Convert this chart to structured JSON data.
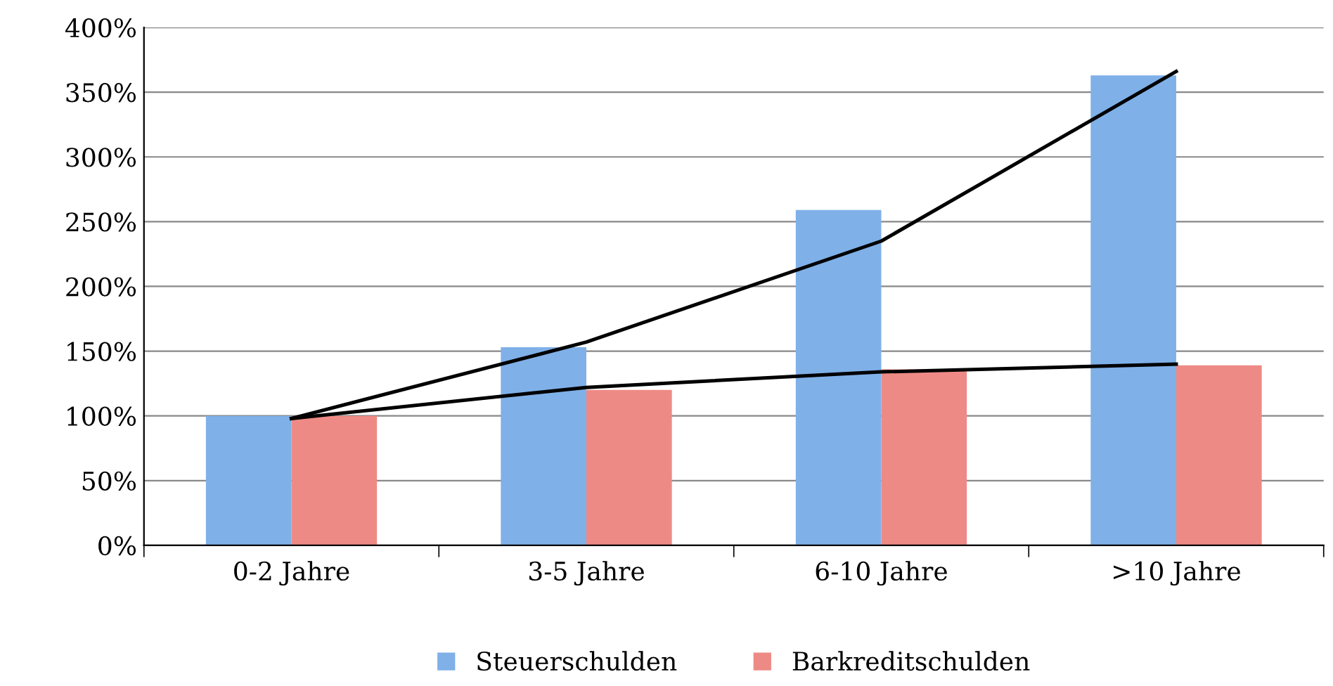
{
  "chart_data": {
    "type": "bar",
    "categories": [
      "0-2 Jahre",
      "3-5 Jahre",
      "6-10 Jahre",
      ">10 Jahre"
    ],
    "series": [
      {
        "name": "Steuerschulden",
        "color": "#7fb0e8",
        "values": [
          100,
          153,
          259,
          363
        ]
      },
      {
        "name": "Barkreditschulden",
        "color": "#ee8a85",
        "values": [
          100,
          120,
          136,
          139
        ]
      },
      {
        "type": "line",
        "color": "#000000",
        "values": [
          98,
          157,
          235,
          366
        ]
      },
      {
        "type": "line",
        "color": "#000000",
        "values": [
          98,
          122,
          134,
          140
        ]
      }
    ],
    "ylim": [
      0,
      400
    ],
    "yticks": [
      {
        "value": 0,
        "label": "0%"
      },
      {
        "value": 50,
        "label": "50%"
      },
      {
        "value": 100,
        "label": "100%"
      },
      {
        "value": 150,
        "label": "150%"
      },
      {
        "value": 200,
        "label": "200%"
      },
      {
        "value": 250,
        "label": "250%"
      },
      {
        "value": 300,
        "label": "300%"
      },
      {
        "value": 350,
        "label": "350%"
      },
      {
        "value": 400,
        "label": "400%"
      }
    ],
    "grid": "y",
    "legend": "bottom",
    "marker": "none",
    "line_style": "solid"
  }
}
